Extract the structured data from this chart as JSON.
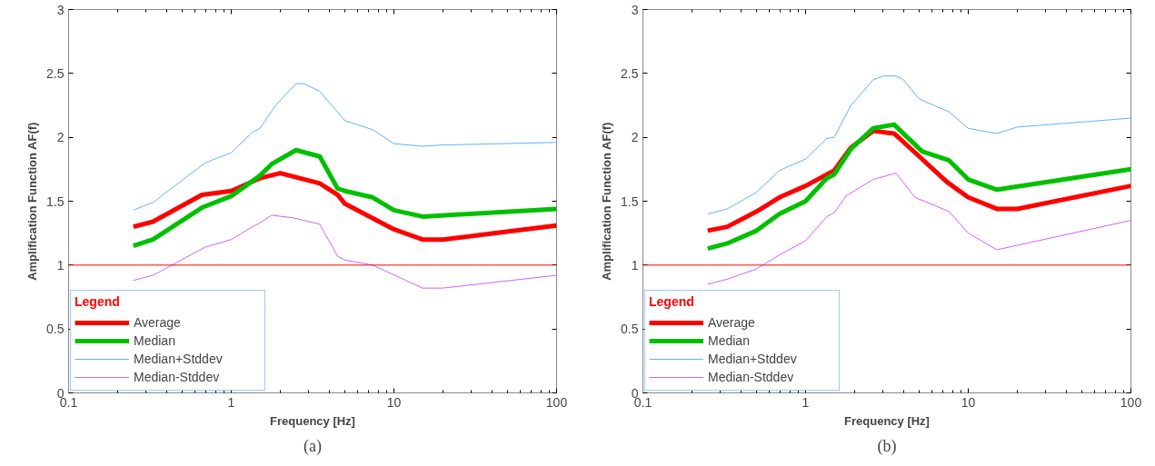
{
  "chart_data": [
    {
      "type": "line",
      "xlabel": "Frequency [Hz]",
      "ylabel": "Amplification Function AF(f)",
      "log": "x",
      "xlim": [
        0.1,
        100
      ],
      "xticks": [
        0.1,
        1,
        10,
        100
      ],
      "ylim": [
        0,
        3
      ],
      "yticks": [
        0,
        0.5,
        1,
        1.5,
        2,
        2.5,
        3
      ],
      "legend": "bottom left",
      "legend_title": "Legend",
      "annotations": [
        "(a)"
      ],
      "ref_lines": [
        {
          "axis": "y",
          "value": 1,
          "color": "#ff0000"
        }
      ],
      "series": [
        {
          "name": "Average",
          "color": "#ff0000",
          "x": [
            0.25,
            0.33,
            0.66,
            1,
            1.5,
            2,
            3.5,
            4.5,
            5,
            10,
            15,
            20,
            100
          ],
          "values": [
            1.3,
            1.34,
            1.55,
            1.58,
            1.68,
            1.72,
            1.64,
            1.55,
            1.48,
            1.28,
            1.2,
            1.2,
            1.31
          ]
        },
        {
          "name": "Median",
          "color": "#00c000",
          "x": [
            0.25,
            0.33,
            0.66,
            1,
            1.5,
            1.77,
            2.5,
            3.5,
            4.5,
            5,
            7.4,
            10,
            15,
            100
          ],
          "values": [
            1.15,
            1.2,
            1.45,
            1.54,
            1.7,
            1.79,
            1.9,
            1.85,
            1.6,
            1.58,
            1.53,
            1.43,
            1.38,
            1.44
          ]
        },
        {
          "name": "Median+Stddev",
          "color": "#60b0ff",
          "x": [
            0.25,
            0.33,
            0.69,
            1,
            1.35,
            1.5,
            1.9,
            2.5,
            2.8,
            3.5,
            5,
            7.4,
            10,
            15,
            20,
            100
          ],
          "values": [
            1.43,
            1.49,
            1.8,
            1.88,
            2.04,
            2.07,
            2.26,
            2.42,
            2.42,
            2.36,
            2.13,
            2.06,
            1.95,
            1.93,
            1.94,
            1.96
          ]
        },
        {
          "name": "Median-Stddev",
          "color": "#d060ff",
          "x": [
            0.25,
            0.33,
            0.69,
            1,
            1.35,
            1.5,
            1.77,
            2.4,
            3.5,
            4.5,
            5,
            7.4,
            15,
            20,
            100
          ],
          "values": [
            0.88,
            0.92,
            1.14,
            1.2,
            1.3,
            1.33,
            1.39,
            1.37,
            1.32,
            1.07,
            1.04,
            1.0,
            0.82,
            0.82,
            0.92
          ]
        }
      ]
    },
    {
      "type": "line",
      "xlabel": "Frequency [Hz]",
      "ylabel": "Amplification Function AF(f)",
      "log": "x",
      "xlim": [
        0.1,
        100
      ],
      "xticks": [
        0.1,
        1,
        10,
        100
      ],
      "ylim": [
        0,
        3
      ],
      "yticks": [
        0,
        0.5,
        1,
        1.5,
        2,
        2.5,
        3
      ],
      "legend": "bottom left",
      "legend_title": "Legend",
      "annotations": [
        "(b)"
      ],
      "ref_lines": [
        {
          "axis": "y",
          "value": 1,
          "color": "#ff0000"
        }
      ],
      "series": [
        {
          "name": "Average",
          "color": "#ff0000",
          "x": [
            0.25,
            0.33,
            0.5,
            0.69,
            1,
            1.5,
            1.9,
            2.6,
            3.5,
            5,
            7.4,
            10,
            15,
            20,
            100
          ],
          "values": [
            1.27,
            1.3,
            1.42,
            1.53,
            1.62,
            1.74,
            1.92,
            2.05,
            2.03,
            1.85,
            1.65,
            1.53,
            1.44,
            1.44,
            1.62
          ]
        },
        {
          "name": "Median",
          "color": "#00c000",
          "x": [
            0.25,
            0.33,
            0.5,
            0.69,
            1,
            1.35,
            1.5,
            1.9,
            2.6,
            3.5,
            5.2,
            7.6,
            10,
            15,
            100
          ],
          "values": [
            1.13,
            1.17,
            1.27,
            1.4,
            1.5,
            1.68,
            1.71,
            1.91,
            2.07,
            2.1,
            1.89,
            1.82,
            1.67,
            1.59,
            1.75
          ]
        },
        {
          "name": "Median+Stddev",
          "color": "#60b0ff",
          "x": [
            0.25,
            0.33,
            0.5,
            0.69,
            1,
            1.35,
            1.5,
            1.9,
            2.6,
            3,
            3.6,
            4,
            5,
            7.6,
            10,
            15,
            20,
            100
          ],
          "values": [
            1.4,
            1.44,
            1.57,
            1.74,
            1.83,
            1.99,
            2.0,
            2.25,
            2.45,
            2.48,
            2.48,
            2.45,
            2.3,
            2.2,
            2.07,
            2.03,
            2.08,
            2.15
          ]
        },
        {
          "name": "Median-Stddev",
          "color": "#d060ff",
          "x": [
            0.25,
            0.33,
            0.5,
            0.69,
            1,
            1.35,
            1.5,
            1.77,
            2.6,
            3.6,
            4.7,
            7.6,
            10,
            15,
            100
          ],
          "values": [
            0.85,
            0.89,
            0.97,
            1.08,
            1.19,
            1.38,
            1.41,
            1.54,
            1.67,
            1.72,
            1.53,
            1.42,
            1.25,
            1.12,
            1.35
          ]
        }
      ]
    }
  ]
}
